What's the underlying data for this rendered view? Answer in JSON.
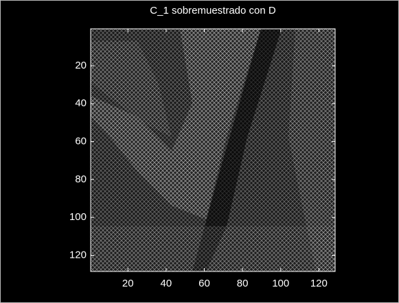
{
  "chart_data": {
    "type": "image",
    "title": "C_1 sobremuestrado con D",
    "xlim": [
      0.5,
      128.5
    ],
    "ylim": [
      0.5,
      128.5
    ],
    "y_reversed": true,
    "xticks": [
      20,
      40,
      60,
      80,
      100,
      120
    ],
    "yticks": [
      20,
      40,
      60,
      80,
      100,
      120
    ]
  }
}
